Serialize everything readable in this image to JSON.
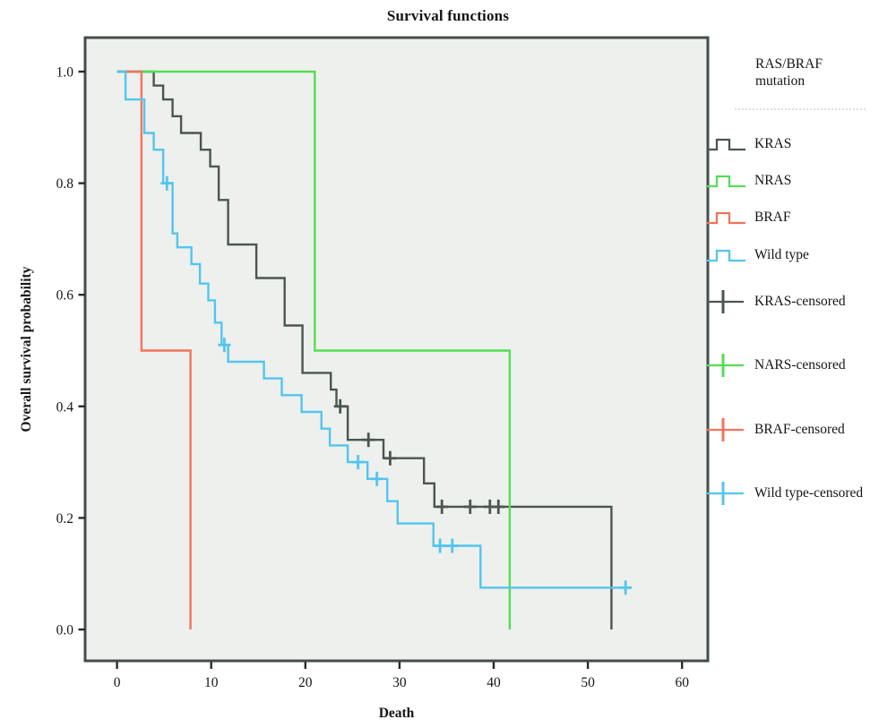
{
  "figure": {
    "title": "Survival functions",
    "x_axis": {
      "label": "Death",
      "ticks": [
        "0",
        "10",
        "20",
        "30",
        "40",
        "50",
        "60"
      ]
    },
    "y_axis": {
      "label": "Overall survival probability",
      "ticks": [
        "1.0",
        "0.8",
        "0.6",
        "0.4",
        "0.2",
        "0.0"
      ]
    },
    "legend": {
      "title_lines": [
        "RAS/BRAF",
        "mutation"
      ],
      "entries": [
        {
          "label": "KRAS",
          "color": "#4b5551",
          "type": "step"
        },
        {
          "label": "NRAS",
          "color": "#55dd55",
          "type": "step"
        },
        {
          "label": "BRAF",
          "color": "#f4735b",
          "type": "step"
        },
        {
          "label": "Wild type",
          "color": "#53c5ef",
          "type": "step"
        },
        {
          "label": "KRAS-censored",
          "color": "#4b5551",
          "type": "censor"
        },
        {
          "label": "NARS-censored",
          "color": "#55dd55",
          "type": "censor"
        },
        {
          "label": "BRAF-censored",
          "color": "#f4735b",
          "type": "censor"
        },
        {
          "label": "Wild type-censored",
          "color": "#53c5ef",
          "type": "censor"
        }
      ]
    }
  },
  "chart_data": {
    "type": "line",
    "subtype": "kaplan-meier-step",
    "title": "Survival functions",
    "xlabel": "Death",
    "ylabel": "Overall survival probability",
    "xlim": [
      -3.9,
      62.8
    ],
    "ylim": [
      -0.056,
      1.061
    ],
    "x_ticks": [
      0,
      10,
      20,
      30,
      40,
      50,
      60
    ],
    "y_ticks": [
      1.0,
      0.8,
      0.6,
      0.4,
      0.2,
      0.0
    ],
    "grid": false,
    "legend_position": "right",
    "plot_bg": "#edf0ed",
    "frame_color": "#434e4a",
    "series": [
      {
        "name": "KRAS",
        "color": "#4b5551",
        "start": [
          0,
          1.0
        ],
        "steps": [
          [
            3.9,
            0.975
          ],
          [
            4.9,
            0.95
          ],
          [
            5.9,
            0.92
          ],
          [
            6.8,
            0.89
          ],
          [
            8.9,
            0.86
          ],
          [
            9.9,
            0.83
          ],
          [
            10.8,
            0.77
          ],
          [
            11.8,
            0.69
          ],
          [
            14.8,
            0.63
          ],
          [
            17.8,
            0.545
          ],
          [
            19.7,
            0.46
          ],
          [
            22.7,
            0.43
          ],
          [
            23.3,
            0.4
          ],
          [
            24.5,
            0.34
          ],
          [
            28.3,
            0.307
          ],
          [
            32.6,
            0.262
          ],
          [
            33.7,
            0.22
          ],
          [
            52.5,
            0.0
          ]
        ],
        "end_x": null,
        "censored": [
          [
            23.7,
            0.4
          ],
          [
            26.7,
            0.34
          ],
          [
            29.0,
            0.307
          ],
          [
            34.5,
            0.22
          ],
          [
            37.5,
            0.22
          ],
          [
            39.6,
            0.22
          ],
          [
            40.5,
            0.22
          ]
        ]
      },
      {
        "name": "NRAS",
        "color": "#55dd55",
        "start": [
          0,
          1.0
        ],
        "steps": [
          [
            21,
            0.5
          ],
          [
            41.7,
            0.0
          ]
        ],
        "end_x": null,
        "censored": []
      },
      {
        "name": "BRAF",
        "color": "#f4735b",
        "start": [
          0,
          1.0
        ],
        "steps": [
          [
            2.6,
            0.5
          ],
          [
            7.8,
            0.0
          ]
        ],
        "end_x": null,
        "censored": []
      },
      {
        "name": "Wild type",
        "color": "#53c5ef",
        "start": [
          0,
          1.0
        ],
        "steps": [
          [
            0.9,
            0.95
          ],
          [
            2.9,
            0.89
          ],
          [
            3.9,
            0.86
          ],
          [
            4.9,
            0.8
          ],
          [
            5.9,
            0.71
          ],
          [
            6.4,
            0.685
          ],
          [
            7.9,
            0.655
          ],
          [
            8.8,
            0.62
          ],
          [
            9.7,
            0.59
          ],
          [
            10.4,
            0.55
          ],
          [
            11.1,
            0.51
          ],
          [
            11.8,
            0.48
          ],
          [
            15.6,
            0.45
          ],
          [
            17.5,
            0.42
          ],
          [
            19.6,
            0.39
          ],
          [
            21.7,
            0.36
          ],
          [
            22.6,
            0.33
          ],
          [
            24.5,
            0.3
          ],
          [
            26.6,
            0.27
          ],
          [
            28.7,
            0.23
          ],
          [
            29.8,
            0.19
          ],
          [
            33.6,
            0.15
          ],
          [
            38.6,
            0.075
          ]
        ],
        "end_x": 54,
        "censored": [
          [
            5.3,
            0.8
          ],
          [
            11.4,
            0.51
          ],
          [
            25.6,
            0.3
          ],
          [
            27.6,
            0.27
          ],
          [
            34.3,
            0.15
          ],
          [
            35.6,
            0.15
          ],
          [
            54,
            0.075
          ]
        ]
      }
    ]
  }
}
